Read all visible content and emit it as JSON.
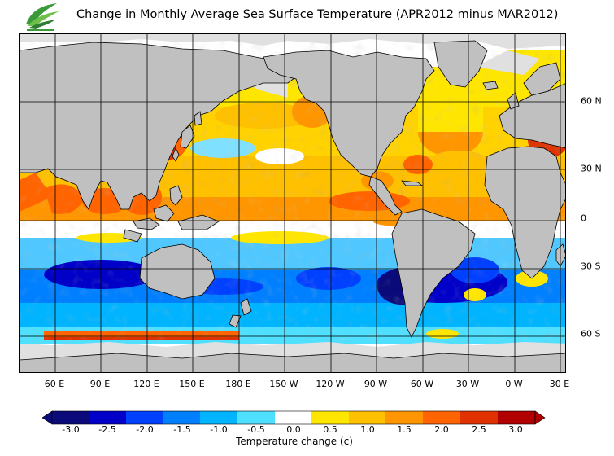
{
  "title": "Change in Monthly Average Sea Surface Temperature (APR2012 minus MAR2012)",
  "lon_labels": [
    "60 E",
    "90 E",
    "120 E",
    "150 E",
    "180 E",
    "150 W",
    "120 W",
    "90 W",
    "60 W",
    "30 W",
    "0 W",
    "30 E"
  ],
  "lat_labels": [
    "60 N",
    "30 N",
    "0",
    "30 S",
    "60 S"
  ],
  "colorbar": {
    "labels": [
      "-3.0",
      "-2.5",
      "-2.0",
      "-1.5",
      "-1.0",
      "-0.5",
      "0.0",
      "0.5",
      "1.0",
      "1.5",
      "2.0",
      "2.5",
      "3.0"
    ],
    "colors": [
      "#0a0a7a",
      "#0000c8",
      "#0040ff",
      "#0080ff",
      "#00b4ff",
      "#50e0ff",
      "#ffffff",
      "#ffe600",
      "#ffc000",
      "#ff9600",
      "#ff6400",
      "#e03200",
      "#b00000"
    ],
    "title": "Temperature change  (c)"
  },
  "map_colors": {
    "land": "#c0c0c0",
    "ice": "#e0e0e0",
    "border": "#000000"
  }
}
